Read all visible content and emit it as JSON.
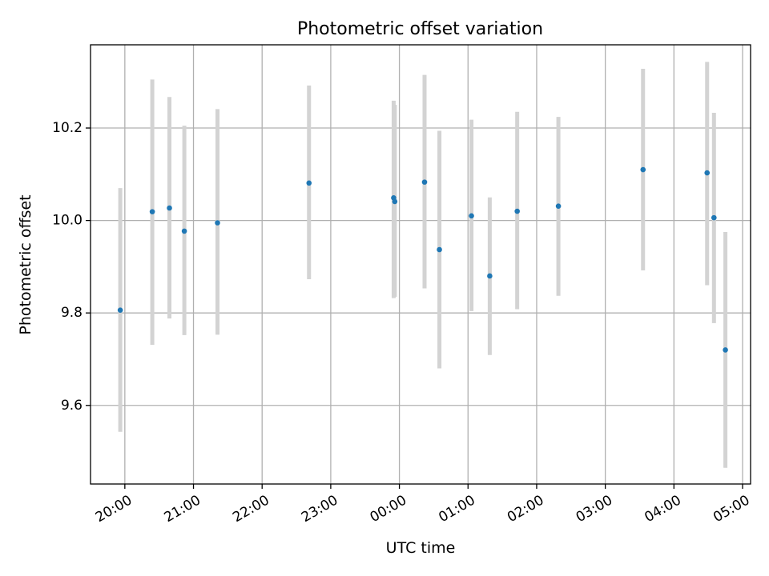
{
  "chart_data": {
    "type": "scatter",
    "title": "Photometric offset variation",
    "xlabel": "UTC time",
    "ylabel": "Photometric offset",
    "grid": true,
    "marker_color": "#1f77b4",
    "errorbar_color": "#d3d3d3",
    "x_axis": {
      "type": "time",
      "min": "19:30",
      "max": "05:07",
      "ticks": [
        "20:00",
        "21:00",
        "22:00",
        "23:00",
        "00:00",
        "01:00",
        "02:00",
        "03:00",
        "04:00",
        "05:00"
      ]
    },
    "y_axis": {
      "min": 9.43,
      "max": 10.38,
      "ticks": [
        9.6,
        9.8,
        10.0,
        10.2
      ],
      "tick_labels": [
        "9.6",
        "9.8",
        "10.0",
        "10.2"
      ]
    },
    "points": [
      {
        "time": "19:56",
        "y": 9.806,
        "yerr_low": 9.543,
        "yerr_high": 10.07
      },
      {
        "time": "20:24",
        "y": 10.019,
        "yerr_low": 9.731,
        "yerr_high": 10.305
      },
      {
        "time": "20:39",
        "y": 10.027,
        "yerr_low": 9.788,
        "yerr_high": 10.267
      },
      {
        "time": "20:52",
        "y": 9.977,
        "yerr_low": 9.752,
        "yerr_high": 10.205
      },
      {
        "time": "21:21",
        "y": 9.995,
        "yerr_low": 9.753,
        "yerr_high": 10.241
      },
      {
        "time": "22:41",
        "y": 10.081,
        "yerr_low": 9.873,
        "yerr_high": 10.292
      },
      {
        "time": "23:55",
        "y": 10.049,
        "yerr_low": 9.832,
        "yerr_high": 10.259
      },
      {
        "time": "23:56",
        "y": 10.041,
        "yerr_low": 9.835,
        "yerr_high": 10.25
      },
      {
        "time": "00:22",
        "y": 10.083,
        "yerr_low": 9.853,
        "yerr_high": 10.315
      },
      {
        "time": "00:35",
        "y": 9.937,
        "yerr_low": 9.68,
        "yerr_high": 10.194
      },
      {
        "time": "01:03",
        "y": 10.01,
        "yerr_low": 9.804,
        "yerr_high": 10.218
      },
      {
        "time": "01:19",
        "y": 9.88,
        "yerr_low": 9.709,
        "yerr_high": 10.05
      },
      {
        "time": "01:43",
        "y": 10.02,
        "yerr_low": 9.808,
        "yerr_high": 10.235
      },
      {
        "time": "02:19",
        "y": 10.031,
        "yerr_low": 9.837,
        "yerr_high": 10.224
      },
      {
        "time": "03:33",
        "y": 10.11,
        "yerr_low": 9.892,
        "yerr_high": 10.328
      },
      {
        "time": "04:29",
        "y": 10.103,
        "yerr_low": 9.86,
        "yerr_high": 10.343
      },
      {
        "time": "04:35",
        "y": 10.006,
        "yerr_low": 9.778,
        "yerr_high": 10.233
      },
      {
        "time": "04:45",
        "y": 9.72,
        "yerr_low": 9.465,
        "yerr_high": 9.975
      }
    ]
  }
}
